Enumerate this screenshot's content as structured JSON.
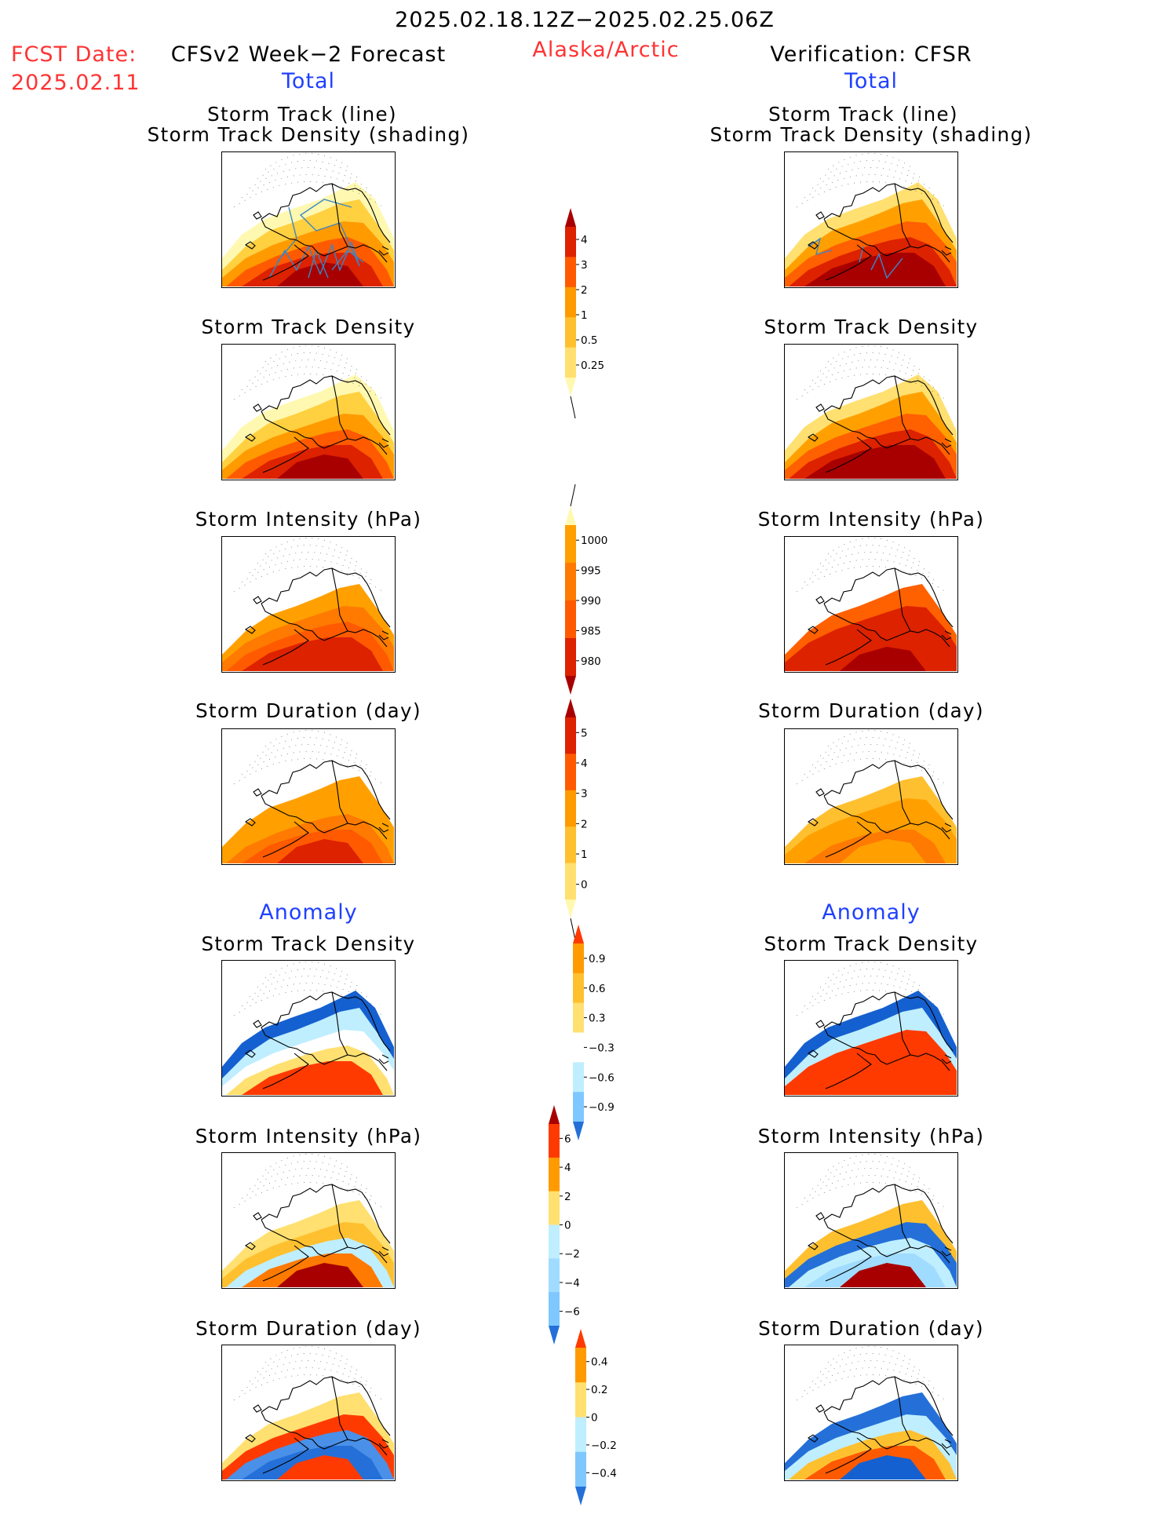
{
  "header": {
    "date_range": "2025.02.18.12Z−2025.02.25.06Z",
    "fcst_label": "FCST Date:",
    "fcst_date": "2025.02.11",
    "model": "CFSv2 Week−2 Forecast",
    "region": "Alaska/Arctic",
    "verification": "Verification: CFSR"
  },
  "sections": {
    "total": "Total",
    "anomaly": "Anomaly"
  },
  "panels": [
    {
      "id": "track-line",
      "title_line1": "Storm Track (line)",
      "title_line2": "Storm Track Density (shading)",
      "left_fill": [
        "#fff8b0",
        "#ffd040",
        "#ff9a00",
        "#ff5a00",
        "#dd2200",
        "#a80000"
      ],
      "right_fill": [
        "#ffe070",
        "#ffa000",
        "#ff6000",
        "#dd2200",
        "#a80000",
        "#a80000"
      ]
    },
    {
      "id": "track-density",
      "title_line1": "Storm Track Density",
      "title_line2": "",
      "left_fill": [
        "#fff8b0",
        "#ffd040",
        "#ff9a00",
        "#ff5a00",
        "#dd2200",
        "#a80000"
      ],
      "right_fill": [
        "#ffe070",
        "#ffa000",
        "#ff6000",
        "#dd2200",
        "#a80000",
        "#a80000"
      ]
    },
    {
      "id": "intensity",
      "title_line1": "Storm Intensity (hPa)",
      "title_line2": "",
      "left_fill": [
        "#ffffff",
        "#ffa000",
        "#ff7a00",
        "#ff5a00",
        "#dd2200",
        "#dd2200"
      ],
      "right_fill": [
        "#ffffff",
        "#ff6000",
        "#dd2200",
        "#dd2200",
        "#dd2200",
        "#a80000"
      ]
    },
    {
      "id": "duration",
      "title_line1": "Storm Duration (day)",
      "title_line2": "",
      "left_fill": [
        "#ffffff",
        "#ffa000",
        "#ffa000",
        "#ff7a00",
        "#ff5a00",
        "#dd2200"
      ],
      "right_fill": [
        "#ffffff",
        "#ffc030",
        "#ffa000",
        "#ffa000",
        "#ff7a00",
        "#ffa000"
      ]
    },
    {
      "id": "anom-density",
      "title_line1": "Storm Track Density",
      "title_line2": "",
      "left_fill": [
        "#1560d0",
        "#bfeeff",
        "#ffffff",
        "#ffe070",
        "#ff3a00",
        "#ff3a00"
      ],
      "right_fill": [
        "#1560d0",
        "#bfeeff",
        "#ff3a00",
        "#ff3a00",
        "#ff3a00",
        "#ff3a00"
      ]
    },
    {
      "id": "anom-intensity",
      "title_line1": "Storm Intensity (hPa)",
      "title_line2": "",
      "left_fill": [
        "#ffffff",
        "#ffe070",
        "#ffc030",
        "#bfeeff",
        "#ff7a00",
        "#a80000"
      ],
      "right_fill": [
        "#ffffff",
        "#ffc030",
        "#2470d8",
        "#bfeeff",
        "#a0dcff",
        "#a80000"
      ]
    },
    {
      "id": "anom-duration",
      "title_line1": "Storm Duration (day)",
      "title_line2": "",
      "left_fill": [
        "#ffffff",
        "#ffe070",
        "#ff3a00",
        "#4a90e8",
        "#2470d8",
        "#ff3a00"
      ],
      "right_fill": [
        "#ffffff",
        "#2470d8",
        "#bfeeff",
        "#ffc030",
        "#ff5a00",
        "#1560d0"
      ]
    }
  ],
  "colorbars": [
    {
      "id": "density",
      "labels": [
        "4",
        "3",
        "2",
        "1",
        "0.5",
        "0.25"
      ],
      "colors": [
        "#a80000",
        "#dd2200",
        "#ff5a00",
        "#ff9a00",
        "#ffc030",
        "#ffe070",
        "#fff8b0"
      ],
      "tail": "bottom"
    },
    {
      "id": "intensity",
      "labels": [
        "1000",
        "995",
        "990",
        "985",
        "980"
      ],
      "colors": [
        "#fff8b0",
        "#ffa000",
        "#ff7a00",
        "#ff5a00",
        "#dd2200",
        "#a80000"
      ],
      "tail": "top"
    },
    {
      "id": "duration",
      "labels": [
        "5",
        "4",
        "3",
        "2",
        "1",
        "0"
      ],
      "colors": [
        "#a80000",
        "#dd2200",
        "#ff5a00",
        "#ff9a00",
        "#ffc030",
        "#ffe070",
        "#fff8b0"
      ],
      "tail": "bottom"
    },
    {
      "id": "anom-density",
      "labels": [
        "0.9",
        "0.6",
        "0.3",
        "−0.3",
        "−0.6",
        "−0.9"
      ],
      "colors": [
        "#ff3a00",
        "#ff9a00",
        "#ffc030",
        "#ffe070",
        "#ffffff",
        "#bfeeff",
        "#7ec8ff",
        "#2470d8"
      ],
      "tail": "none"
    },
    {
      "id": "anom-intensity",
      "labels": [
        "6",
        "4",
        "2",
        "0",
        "−2",
        "−4",
        "−6"
      ],
      "colors": [
        "#a80000",
        "#ff3a00",
        "#ff9a00",
        "#ffe070",
        "#bfeeff",
        "#a0dcff",
        "#7ec8ff",
        "#2470d8"
      ],
      "tail": "none"
    },
    {
      "id": "anom-duration",
      "labels": [
        "0.4",
        "0.2",
        "0",
        "−0.2",
        "−0.4"
      ],
      "colors": [
        "#ff3a00",
        "#ff9a00",
        "#ffe070",
        "#bfeeff",
        "#7ec8ff",
        "#2470d8"
      ],
      "tail": "none"
    }
  ]
}
